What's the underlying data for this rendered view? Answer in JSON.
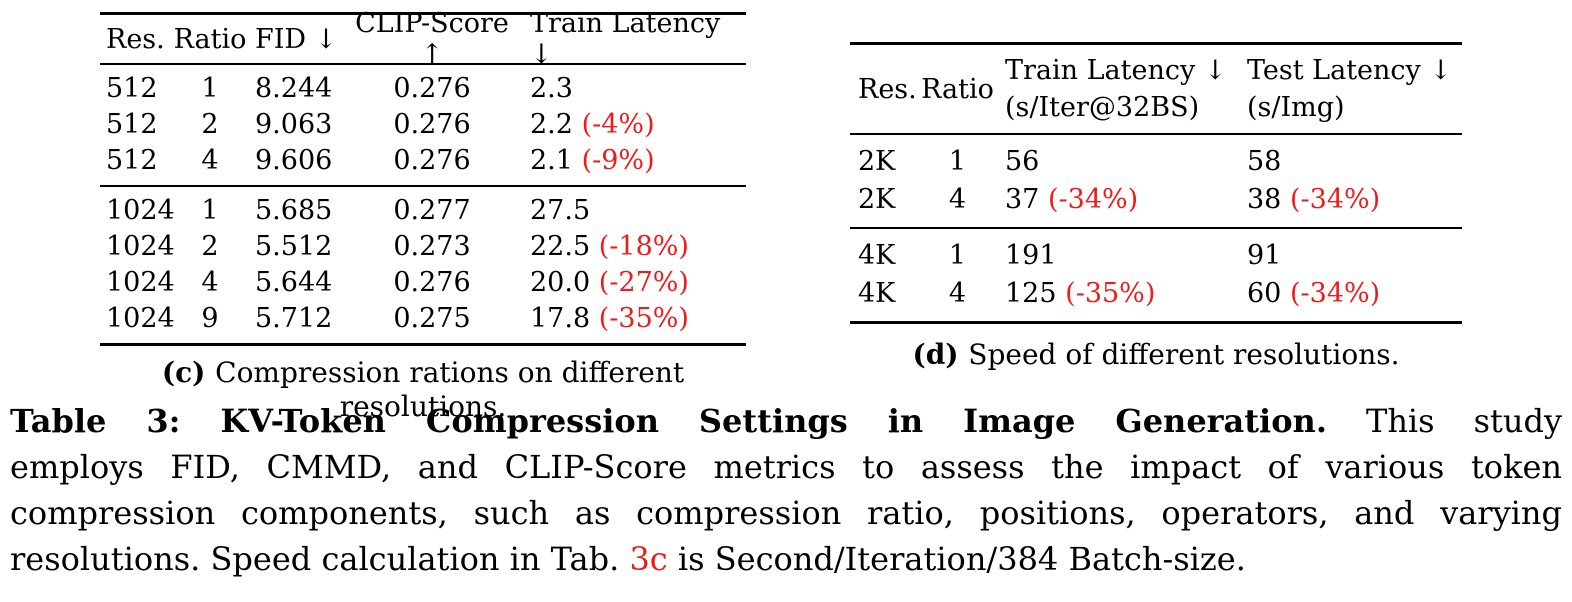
{
  "colors": {
    "red_accent": "#ed1c1c",
    "text": "#000000",
    "background": "#ffffff"
  },
  "table_c": {
    "headers": [
      "Res.",
      "Ratio",
      "FID ↓",
      "CLIP-Score ↑",
      "Train Latency ↓"
    ],
    "groups": [
      {
        "rows": [
          {
            "res": "512",
            "ratio": "1",
            "fid": "8.244",
            "clip": "0.276",
            "latency": "2.3",
            "latency_delta": ""
          },
          {
            "res": "512",
            "ratio": "2",
            "fid": "9.063",
            "clip": "0.276",
            "latency": "2.2",
            "latency_delta": "(-4%)"
          },
          {
            "res": "512",
            "ratio": "4",
            "fid": "9.606",
            "clip": "0.276",
            "latency": "2.1",
            "latency_delta": "(-9%)"
          }
        ]
      },
      {
        "rows": [
          {
            "res": "1024",
            "ratio": "1",
            "fid": "5.685",
            "clip": "0.277",
            "latency": "27.5",
            "latency_delta": ""
          },
          {
            "res": "1024",
            "ratio": "2",
            "fid": "5.512",
            "clip": "0.273",
            "latency": "22.5",
            "latency_delta": "(-18%)"
          },
          {
            "res": "1024",
            "ratio": "4",
            "fid": "5.644",
            "clip": "0.276",
            "latency": "20.0",
            "latency_delta": "(-27%)"
          },
          {
            "res": "1024",
            "ratio": "9",
            "fid": "5.712",
            "clip": "0.275",
            "latency": "17.8",
            "latency_delta": "(-35%)"
          }
        ]
      }
    ],
    "caption_label": "(c)",
    "caption_text": "Compression rations on different resolutions."
  },
  "table_d": {
    "headers": {
      "res": "Res.",
      "ratio": "Ratio",
      "train_line1": "Train Latency ↓",
      "train_line2": "(s/Iter@32BS)",
      "test_line1": "Test Latency ↓",
      "test_line2": "(s/Img)"
    },
    "groups": [
      {
        "rows": [
          {
            "res": "2K",
            "ratio": "1",
            "train": "56",
            "train_delta": "",
            "test": "58",
            "test_delta": ""
          },
          {
            "res": "2K",
            "ratio": "4",
            "train": "37",
            "train_delta": "(-34%)",
            "test": "38",
            "test_delta": "(-34%)"
          }
        ]
      },
      {
        "rows": [
          {
            "res": "4K",
            "ratio": "1",
            "train": "191",
            "train_delta": "",
            "test": "91",
            "test_delta": ""
          },
          {
            "res": "4K",
            "ratio": "4",
            "train": "125",
            "train_delta": "(-35%)",
            "test": "60",
            "test_delta": "(-34%)"
          }
        ]
      }
    ],
    "caption_label": "(d)",
    "caption_text": "Speed of different resolutions."
  },
  "main_caption": {
    "line1_bold": "Table 3: KV-Token Compression Settings in Image Generation.",
    "line1_rest": "This study",
    "line2": "employs FID, CMMD, and CLIP-Score metrics to assess the impact of various token",
    "line3": "compression components, such as compression ratio, positions, operators, and varying",
    "line4_pre": "resolutions. Speed calculation in Tab.",
    "line4_ref": "3c",
    "line4_post": "is Second/Iteration/384 Batch-size."
  }
}
